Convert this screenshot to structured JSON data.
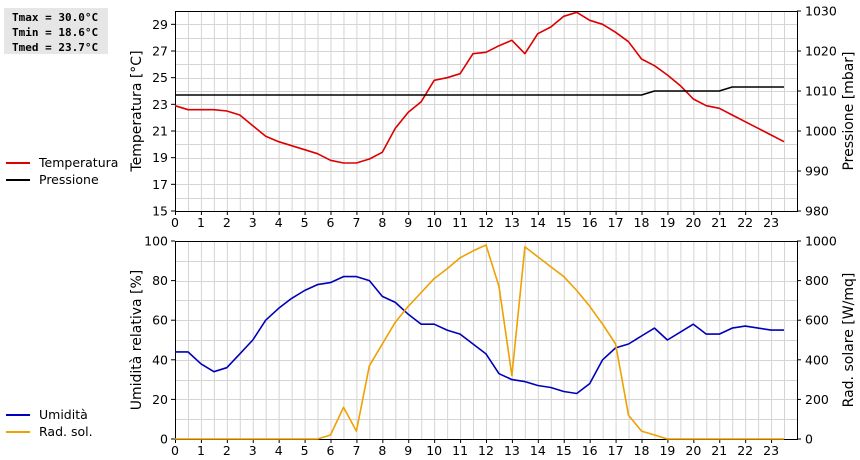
{
  "stats": {
    "tmax": "Tmax = 30.0°C",
    "tmin": "Tmin = 18.6°C",
    "tmed": "Tmed = 23.7°C"
  },
  "legend_top": [
    {
      "label": "Temperatura",
      "color": "#dd0000"
    },
    {
      "label": "Pressione",
      "color": "#000000"
    }
  ],
  "legend_bottom": [
    {
      "label": "Umidità",
      "color": "#0000bb"
    },
    {
      "label": "Rad. sol.",
      "color": "#f0a000"
    }
  ],
  "chart_data": [
    {
      "type": "line",
      "xlim": [
        0,
        24
      ],
      "xticks": [
        0,
        1,
        2,
        3,
        4,
        5,
        6,
        7,
        8,
        9,
        10,
        11,
        12,
        13,
        14,
        15,
        16,
        17,
        18,
        19,
        20,
        21,
        22,
        23
      ],
      "grid": true,
      "ylabel": "Temperatura [°C]",
      "ylim": [
        15,
        30
      ],
      "yticks": [
        15,
        17,
        19,
        21,
        23,
        25,
        27,
        29
      ],
      "y2label": "Pressione [mbar]",
      "y2lim": [
        980,
        1030
      ],
      "y2ticks": [
        980,
        990,
        1000,
        1010,
        1020,
        1030
      ],
      "series": [
        {
          "name": "Temperatura",
          "axis": "left",
          "color": "#dd0000",
          "x": [
            0,
            0.5,
            1,
            1.5,
            2,
            2.5,
            3,
            3.5,
            4,
            4.5,
            5,
            5.5,
            6,
            6.5,
            7,
            7.5,
            8,
            8.5,
            9,
            9.5,
            10,
            10.5,
            11,
            11.5,
            12,
            12.5,
            13,
            13.5,
            14,
            14.5,
            15,
            15.5,
            16,
            16.5,
            17,
            17.5,
            18,
            18.5,
            19,
            19.5,
            20,
            20.5,
            21,
            21.5,
            22,
            22.5,
            23,
            23.5
          ],
          "y": [
            22.9,
            22.6,
            22.6,
            22.6,
            22.5,
            22.2,
            21.4,
            20.6,
            20.2,
            19.9,
            19.6,
            19.3,
            18.8,
            18.6,
            18.6,
            18.9,
            19.4,
            21.2,
            22.4,
            23.2,
            24.8,
            25.0,
            25.3,
            26.8,
            26.9,
            27.4,
            27.8,
            26.8,
            28.3,
            28.8,
            29.6,
            29.9,
            29.3,
            29.0,
            28.4,
            27.7,
            26.4,
            25.9,
            25.2,
            24.4,
            23.4,
            22.9,
            22.7,
            22.2,
            21.7,
            21.2,
            20.7,
            20.2
          ]
        },
        {
          "name": "Pressione",
          "axis": "right",
          "color": "#000000",
          "x": [
            0,
            2.5,
            3,
            4.5,
            5,
            6,
            6.5,
            7,
            7.5,
            17.5,
            18,
            18.5,
            19,
            20,
            21,
            21.5,
            23.5
          ],
          "y": [
            1009,
            1009,
            1009,
            1009,
            1009,
            1009,
            1009,
            1009,
            1009,
            1009,
            1009,
            1010,
            1010,
            1010,
            1010,
            1011,
            1011
          ]
        }
      ]
    },
    {
      "type": "line",
      "xlim": [
        0,
        24
      ],
      "xticks": [
        0,
        1,
        2,
        3,
        4,
        5,
        6,
        7,
        8,
        9,
        10,
        11,
        12,
        13,
        14,
        15,
        16,
        17,
        18,
        19,
        20,
        21,
        22,
        23
      ],
      "grid": true,
      "ylabel": "Umidità relativa [%]",
      "ylim": [
        0,
        100
      ],
      "yticks": [
        0,
        20,
        40,
        60,
        80,
        100
      ],
      "y2label": "Rad. solare [W/mq]",
      "y2lim": [
        0,
        1000
      ],
      "y2ticks": [
        0,
        200,
        400,
        600,
        800,
        1000
      ],
      "series": [
        {
          "name": "Umidità",
          "axis": "left",
          "color": "#0000bb",
          "x": [
            0,
            0.5,
            1,
            1.5,
            2,
            2.5,
            3,
            3.5,
            4,
            4.5,
            5,
            5.5,
            6,
            6.5,
            7,
            7.5,
            8,
            8.5,
            9,
            9.5,
            10,
            10.5,
            11,
            11.5,
            12,
            12.5,
            13,
            13.5,
            14,
            14.5,
            15,
            15.5,
            16,
            16.5,
            17,
            17.5,
            18,
            18.5,
            19,
            19.5,
            20,
            20.5,
            21,
            21.5,
            22,
            22.5,
            23,
            23.5
          ],
          "y": [
            44,
            44,
            38,
            34,
            36,
            43,
            50,
            60,
            66,
            71,
            75,
            78,
            79,
            82,
            82,
            80,
            72,
            69,
            63,
            58,
            58,
            55,
            53,
            48,
            43,
            33,
            30,
            29,
            27,
            26,
            24,
            23,
            28,
            40,
            46,
            48,
            52,
            56,
            50,
            54,
            58,
            53,
            53,
            56,
            57,
            56,
            55,
            55
          ]
        },
        {
          "name": "Rad. sol.",
          "axis": "right",
          "color": "#f0a000",
          "x": [
            0,
            5.5,
            6,
            6.5,
            7,
            7.5,
            8,
            8.5,
            9,
            9.5,
            10,
            10.5,
            11,
            11.5,
            12,
            12.5,
            13,
            13.5,
            14,
            14.5,
            15,
            15.5,
            16,
            16.5,
            17,
            17.5,
            18,
            18.5,
            19,
            19.5,
            20,
            23.5
          ],
          "y": [
            0,
            0,
            20,
            160,
            40,
            370,
            480,
            590,
            670,
            740,
            810,
            860,
            915,
            950,
            980,
            770,
            320,
            970,
            920,
            870,
            820,
            750,
            670,
            580,
            480,
            120,
            40,
            20,
            0,
            0,
            0,
            0
          ]
        }
      ]
    }
  ]
}
